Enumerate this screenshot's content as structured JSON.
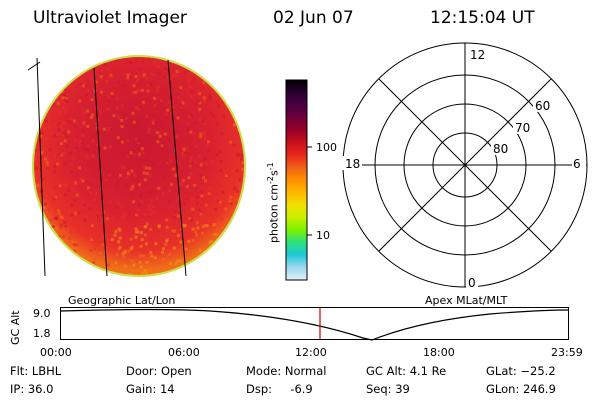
{
  "header": {
    "instrument": "Ultraviolet Imager",
    "date": "02 Jun 07",
    "time": "12:15:04 UT"
  },
  "colorbar": {
    "label": "photon cm",
    "label_exp1": "-2",
    "label_mid": "s",
    "label_exp2": "-1",
    "ticks": [
      "100",
      "10"
    ],
    "colors": [
      "#000000",
      "#2a0030",
      "#4a0040",
      "#70003a",
      "#990028",
      "#c8101e",
      "#e8281a",
      "#f06018",
      "#ff9000",
      "#ffb800",
      "#f0e000",
      "#c8f000",
      "#7cf000",
      "#28e080",
      "#20c8d8",
      "#a0d8f0",
      "#e0f0f8"
    ]
  },
  "polar_plot": {
    "clock_labels": [
      "12",
      "18",
      "6",
      "0"
    ],
    "lat_labels": [
      "60",
      "70",
      "80"
    ]
  },
  "altitude_strip": {
    "left_title": "Geographic Lat/Lon",
    "right_title": "Apex MLat/MLT",
    "axis_label": "GC Alt",
    "y_ticks": [
      "9.0",
      "1.8"
    ],
    "x_ticks": [
      "00:00",
      "06:00",
      "12:00",
      "18:00",
      "23:59"
    ],
    "marker_color": "#cc0000"
  },
  "footer": {
    "flt": "Flt: LBHL",
    "ip": "IP: 36.0",
    "door": "Door: Open",
    "gain": "Gain: 14",
    "mode": "Mode: Normal",
    "dsp": "Dsp:     -6.9",
    "gcalt": "GC Alt: 4.1 Re",
    "seq": "Seq: 39",
    "glat": "GLat: −25.2",
    "glon": "GLon: 246.9"
  },
  "image_colors": {
    "disk_main": "#e83028",
    "disk_core": "#c81830",
    "disk_edge": "#f07018",
    "disk_lower": "#f09818",
    "limb": "#c8e040"
  }
}
